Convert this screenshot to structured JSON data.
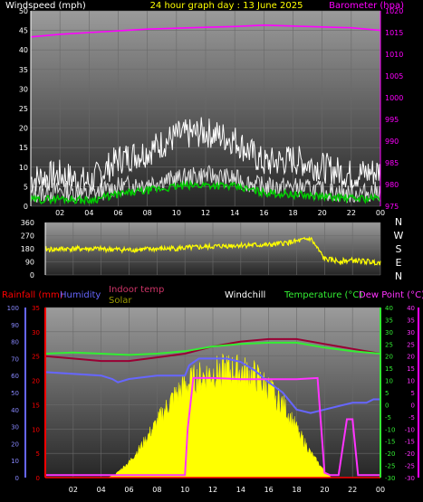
{
  "chart_data": [
    {
      "type": "line",
      "title": "24 hour graph day : 13 June 2025",
      "left_axis_label": "Windspeed (mph)",
      "right_axis_label": "Barometer (hpa)",
      "x_ticks": [
        "02",
        "04",
        "06",
        "08",
        "10",
        "12",
        "14",
        "16",
        "18",
        "20",
        "22",
        "00"
      ],
      "ylim_left": [
        0,
        50
      ],
      "y_ticks_left": [
        "0",
        "5",
        "10",
        "15",
        "20",
        "25",
        "30",
        "35",
        "40",
        "45",
        "50"
      ],
      "ylim_right": [
        975,
        1020
      ],
      "y_ticks_right": [
        "975",
        "980",
        "985",
        "990",
        "995",
        "1000",
        "1005",
        "1010",
        "1015",
        "1020"
      ],
      "colors": {
        "windspeed": "#ffffff",
        "gust": "#ffffff",
        "average": "#00cc00",
        "barometer": "#ff00ff"
      },
      "series": [
        {
          "key": "barometer",
          "x": [
            0,
            2,
            4,
            6,
            8,
            10,
            12,
            14,
            16,
            18,
            20,
            22,
            24
          ],
          "values": [
            1014,
            1014.6,
            1015,
            1015.4,
            1015.8,
            1016,
            1016.2,
            1016.4,
            1016.7,
            1016.5,
            1016.3,
            1016.1,
            1015.5
          ]
        },
        {
          "key": "gust",
          "x": [
            0,
            2,
            4,
            6,
            8,
            10,
            12,
            14,
            16,
            18,
            20,
            22,
            24
          ],
          "values": [
            7,
            8,
            6,
            12,
            14,
            18,
            19,
            17,
            11,
            12,
            10,
            8,
            9
          ]
        },
        {
          "key": "windspeed",
          "x": [
            0,
            2,
            4,
            6,
            8,
            10,
            12,
            14,
            16,
            18,
            20,
            22,
            24
          ],
          "values": [
            3,
            4,
            3,
            5,
            6,
            7,
            8,
            7,
            5,
            5,
            4,
            3,
            4
          ]
        },
        {
          "key": "average",
          "x": [
            0,
            2,
            4,
            6,
            8,
            10,
            12,
            14,
            16,
            18,
            20,
            22,
            24
          ],
          "values": [
            1.5,
            2,
            1.5,
            3,
            4,
            5,
            5.5,
            5,
            3.5,
            3,
            2.5,
            2,
            2
          ]
        }
      ]
    },
    {
      "type": "line",
      "ylim": [
        0,
        360
      ],
      "y_ticks": [
        "0",
        "90",
        "180",
        "270",
        "360"
      ],
      "compass": [
        "N",
        "W",
        "S",
        "E",
        "N"
      ],
      "colors": {
        "direction": "#ffff00"
      },
      "series": [
        {
          "key": "direction",
          "x": [
            0,
            2,
            4,
            6,
            8,
            10,
            12,
            14,
            16,
            18,
            19,
            20,
            21,
            22,
            24
          ],
          "values": [
            175,
            180,
            178,
            172,
            178,
            185,
            195,
            205,
            205,
            230,
            250,
            110,
            95,
            100,
            85
          ]
        }
      ]
    },
    {
      "type": "line",
      "legend": {
        "rainfall": "Rainfall (mm)",
        "humidity": "Humidity",
        "indoor": "Indoor temp",
        "solar": "Solar",
        "windchill": "Windchill",
        "temperature": "Temperature (°C)",
        "dewpoint": "Dew Point (°C)"
      },
      "x_ticks": [
        "02",
        "04",
        "06",
        "08",
        "10",
        "12",
        "14",
        "16",
        "18",
        "20",
        "22",
        "00"
      ],
      "axis_humidity": {
        "ylim": [
          0,
          100
        ],
        "ticks": [
          "0",
          "10",
          "20",
          "30",
          "40",
          "50",
          "60",
          "70",
          "80",
          "90",
          "100"
        ]
      },
      "axis_rain": {
        "ylim": [
          0,
          35
        ],
        "ticks": [
          "0",
          "5",
          "10",
          "15",
          "20",
          "25",
          "30",
          "35"
        ]
      },
      "axis_temp": {
        "ylim": [
          -30,
          40
        ],
        "ticks": [
          "-30",
          "-25",
          "-20",
          "-15",
          "-10",
          "-5",
          "0",
          "5",
          "10",
          "15",
          "20",
          "25",
          "30",
          "35",
          "40"
        ]
      },
      "axis_dew": {
        "ylim": [
          -30,
          40
        ],
        "ticks": [
          "-30",
          "-25",
          "-20",
          "-15",
          "-10",
          "-5",
          "0",
          "5",
          "10",
          "15",
          "20",
          "25",
          "30",
          "35",
          "40"
        ]
      },
      "colors": {
        "rainfall": "#ff0000",
        "humidity": "#6666ff",
        "indoor": "#990033",
        "solar": "#ffff00",
        "windchill": "#ffffff",
        "temperature": "#33ee33",
        "dewpoint": "#ff33ff"
      },
      "series": [
        {
          "key": "solar",
          "x": [
            0,
            4.5,
            5,
            6,
            7,
            8,
            9,
            10,
            11,
            12,
            13,
            14,
            15,
            16,
            17,
            18,
            19,
            20,
            20.5,
            21,
            24
          ],
          "values": [
            0,
            0,
            2,
            10,
            22,
            36,
            50,
            60,
            65,
            68,
            70,
            69,
            66,
            58,
            48,
            32,
            16,
            4,
            0,
            0,
            0
          ]
        },
        {
          "key": "indoor",
          "x": [
            0,
            2,
            4,
            6,
            8,
            10,
            12,
            14,
            16,
            18,
            20,
            22,
            24
          ],
          "values": [
            20,
            19,
            18,
            18,
            19.5,
            21,
            24,
            26,
            27,
            27,
            25,
            23,
            21
          ]
        },
        {
          "key": "temperature",
          "x": [
            0,
            2,
            4,
            6,
            8,
            10,
            12,
            14,
            16,
            18,
            20,
            22,
            24
          ],
          "values": [
            21,
            21.5,
            21,
            20.5,
            21,
            22,
            24,
            25,
            25.5,
            25.5,
            23.5,
            22,
            21
          ]
        },
        {
          "key": "humidity",
          "x": [
            0,
            4,
            4.8,
            5.2,
            6,
            8,
            10,
            10.3,
            11,
            12,
            13,
            14,
            15,
            16,
            17,
            18,
            19,
            20,
            21,
            22,
            23,
            23.5,
            24
          ],
          "values": [
            62,
            60,
            58,
            56,
            58,
            60,
            60,
            66,
            70,
            70,
            70,
            68,
            63,
            56,
            50,
            40,
            38,
            40,
            42,
            44,
            44,
            46,
            46
          ]
        },
        {
          "key": "dewpoint",
          "x": [
            0,
            10,
            10.2,
            10.6,
            12,
            14,
            16,
            18,
            19.5,
            20,
            20.4,
            21,
            21.6,
            22,
            22.4,
            24
          ],
          "values": [
            -29,
            -29,
            -10,
            11,
            11,
            10.5,
            10.5,
            10.5,
            11,
            -28,
            -29,
            -29,
            -6,
            -6,
            -29,
            -29
          ]
        },
        {
          "key": "rainfall",
          "x": [
            0,
            24
          ],
          "values": [
            0,
            0
          ]
        }
      ]
    }
  ]
}
